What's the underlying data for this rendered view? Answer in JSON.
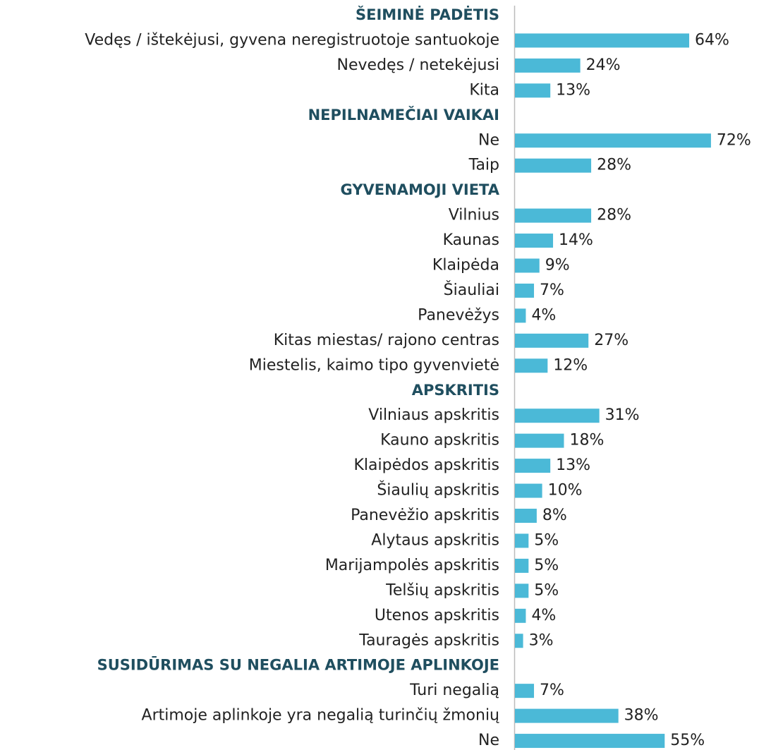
{
  "chart_data": {
    "type": "bar",
    "color": "#4bb9d7",
    "groups": [
      {
        "name": "ŠEIMINĖ PADĖTIS",
        "categories": [
          "Vedęs / ištekėjusi, gyvena neregistruotoje santuokoje",
          "Nevedęs / netekėjusi",
          "Kita"
        ],
        "values": [
          64,
          24,
          13
        ],
        "value_labels": [
          "64%",
          "24%",
          "13%"
        ]
      },
      {
        "name": "NEPILNAMEČIAI VAIKAI",
        "categories": [
          "Ne",
          "Taip"
        ],
        "values": [
          72,
          28
        ],
        "value_labels": [
          "72%",
          "28%"
        ]
      },
      {
        "name": "GYVENAMOJI VIETA",
        "categories": [
          "Vilnius",
          "Kaunas",
          "Klaipėda",
          "Šiauliai",
          "Panevėžys",
          "Kitas miestas/ rajono centras",
          "Miestelis, kaimo tipo gyvenvietė"
        ],
        "values": [
          28,
          14,
          9,
          7,
          4,
          27,
          12
        ],
        "value_labels": [
          "28%",
          "14%",
          "9%",
          "7%",
          "4%",
          "27%",
          "12%"
        ]
      },
      {
        "name": "APSKRITIS",
        "categories": [
          "Vilniaus apskritis",
          "Kauno apskritis",
          "Klaipėdos apskritis",
          "Šiaulių apskritis",
          "Panevėžio apskritis",
          "Alytaus apskritis",
          "Marijampolės apskritis",
          "Telšių apskritis",
          "Utenos apskritis",
          "Tauragės apskritis"
        ],
        "values": [
          31,
          18,
          13,
          10,
          8,
          5,
          5,
          5,
          4,
          3
        ],
        "value_labels": [
          "31%",
          "18%",
          "13%",
          "10%",
          "8%",
          "5%",
          "5%",
          "5%",
          "4%",
          "3%"
        ]
      },
      {
        "name": "SUSIDŪRIMAS SU NEGALIA ARTIMOJE APLINKOJE",
        "categories": [
          "Turi negalią",
          "Artimoje aplinkoje yra negalią turinčių žmonių",
          "Ne"
        ],
        "values": [
          7,
          38,
          55
        ],
        "value_labels": [
          "7%",
          "38%",
          "55%"
        ]
      }
    ]
  }
}
